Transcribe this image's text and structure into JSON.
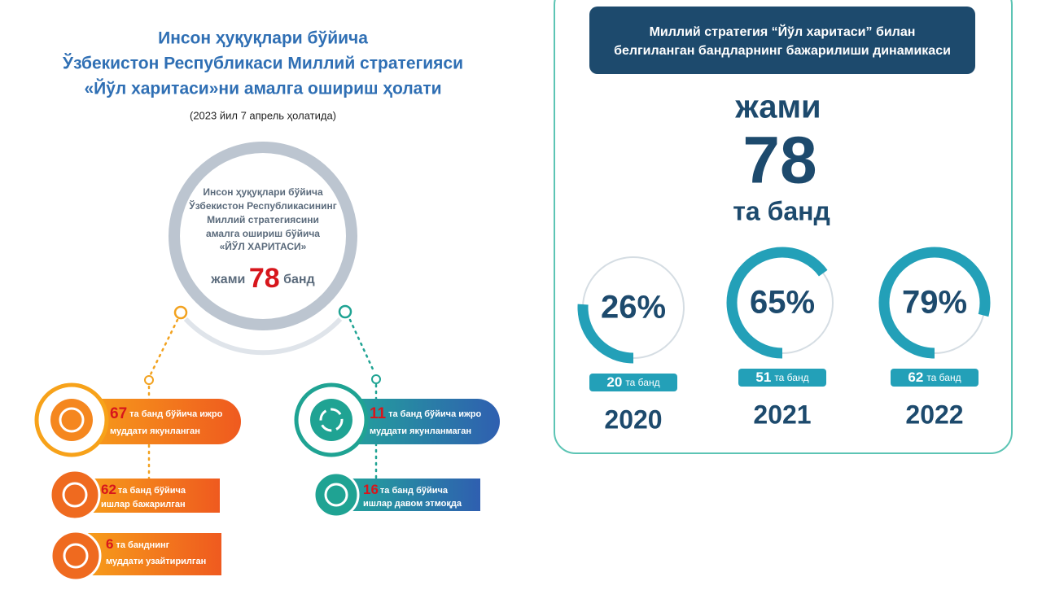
{
  "left": {
    "title": [
      "Инсон ҳуқуқлари бўйича",
      "Ўзбекистон Республикаси Миллий стратегияси",
      "«Йўл харитаси»ни амалга ошириш ҳолати"
    ],
    "subtitle": "(2023 йил 7 апрель ҳолатида)",
    "circle": {
      "lines": [
        "Инсон ҳуқуқлари бўйича",
        "Ўзбекистон Республикасининг",
        "Миллий стратегиясини",
        "амалга ошириш бўйича",
        "«ЙЎЛ ХАРИТАСИ»"
      ],
      "total_prefix": "жами",
      "total": 78,
      "total_suffix": "банд"
    },
    "items": [
      {
        "number": 67,
        "text": [
          "та банд бўйича ижро",
          "муддати якунланган"
        ]
      },
      {
        "number": 11,
        "text": [
          "та банд бўйича ижро",
          "муддати якунланмаган"
        ]
      },
      {
        "number": 62,
        "text": [
          "та банд бўйича",
          "ишлар бажарилган"
        ]
      },
      {
        "number": 16,
        "text": [
          "та банд бўйича",
          "ишлар давом этмоқда"
        ]
      },
      {
        "number": 6,
        "text": [
          "та банднинг",
          "муддати узайтирилган"
        ]
      }
    ]
  },
  "right": {
    "header": [
      "Миллий стратегия “Йўл харитаси” билан",
      "белгиланган бандларнинг бажарилиши динамикаси"
    ],
    "total_prefix": "жами",
    "total": 78,
    "total_suffix": "та банд",
    "years": [
      {
        "percent": 26,
        "percent_label": "26%",
        "count": 20,
        "count_suffix": "та банд",
        "year": "2020"
      },
      {
        "percent": 65,
        "percent_label": "65%",
        "count": 51,
        "count_suffix": "та банд",
        "year": "2021"
      },
      {
        "percent": 79,
        "percent_label": "79%",
        "count": 62,
        "count_suffix": "та банд",
        "year": "2022"
      }
    ]
  }
}
